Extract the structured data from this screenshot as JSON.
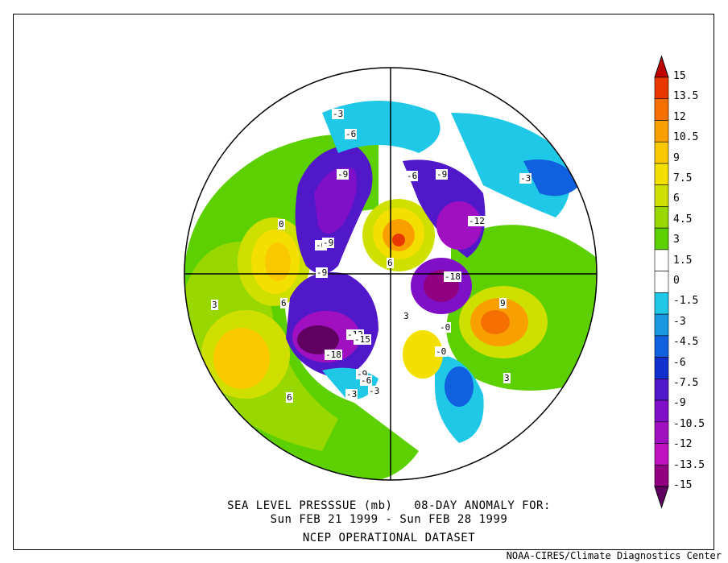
{
  "title": {
    "line1": "SEA LEVEL PRESSSUE (mb)   08-DAY ANOMALY FOR:",
    "line2": "Sun FEB 21 1999 - Sun FEB 28 1999",
    "line3": "NCEP OPERATIONAL DATASET"
  },
  "credit": "NOAA-CIRES/Climate Diagnostics Center",
  "colorbar": {
    "levels": [
      "15",
      "13.5",
      "12",
      "10.5",
      "9",
      "7.5",
      "6",
      "4.5",
      "3",
      "1.5",
      "0",
      "-1.5",
      "-3",
      "-4.5",
      "-6",
      "-7.5",
      "-9",
      "-10.5",
      "-12",
      "-13.5",
      "-15"
    ],
    "colors": [
      "#c00000",
      "#e83800",
      "#f57000",
      "#f9a000",
      "#f9c800",
      "#f4e000",
      "#cfe000",
      "#98d800",
      "#5cd000",
      "#ffffff",
      "#ffffff",
      "#20c8e8",
      "#1898e0",
      "#1060e0",
      "#1030d0",
      "#5018c8",
      "#8010c8",
      "#a010c0",
      "#c010c0",
      "#900080",
      "#600060"
    ]
  },
  "contour_labels": [
    {
      "text": "-3"
    },
    {
      "text": "-6"
    },
    {
      "text": "-9"
    },
    {
      "text": "-6"
    },
    {
      "text": "-9"
    },
    {
      "text": "-12"
    },
    {
      "text": "-6"
    },
    {
      "text": "-9"
    },
    {
      "text": "-9"
    },
    {
      "text": "-18"
    },
    {
      "text": "-12"
    },
    {
      "text": "-15"
    },
    {
      "text": "-18"
    },
    {
      "text": "-9"
    },
    {
      "text": "-6"
    },
    {
      "text": "-3"
    },
    {
      "text": "-3"
    },
    {
      "text": "-0"
    },
    {
      "text": "3"
    },
    {
      "text": "6"
    },
    {
      "text": "9"
    },
    {
      "text": "3"
    },
    {
      "text": "6"
    },
    {
      "text": "3"
    },
    {
      "text": "6"
    },
    {
      "text": "0"
    },
    {
      "text": "-3"
    },
    {
      "text": "-0"
    }
  ]
}
